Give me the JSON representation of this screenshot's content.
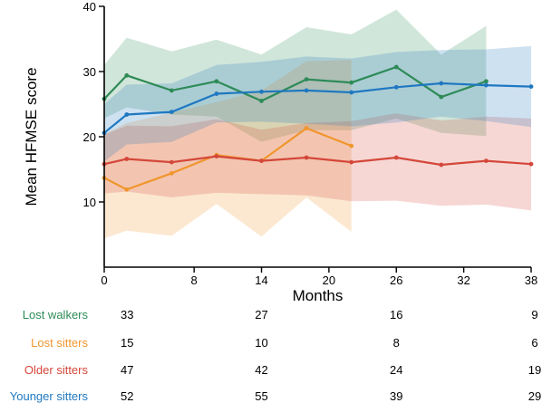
{
  "chart_data": {
    "type": "line",
    "xlabel": "Months",
    "ylabel": "Mean HFMSE score",
    "xlim": [
      0,
      38
    ],
    "ylim": [
      0,
      40
    ],
    "x_ticks": [
      "0",
      "8",
      "14",
      "20",
      "26",
      "32",
      "38"
    ],
    "y_ticks": [
      "10",
      "20",
      "30",
      "40"
    ],
    "grid": false,
    "series": [
      {
        "name": "Lost walkers",
        "color": "#2e8b57",
        "x": [
          0,
          2,
          6,
          10,
          14,
          18,
          22,
          26,
          30,
          34
        ],
        "y": [
          25.8,
          29.4,
          27.1,
          28.5,
          25.5,
          28.8,
          28.3,
          30.7,
          26.1,
          28.5
        ],
        "band_upper": [
          31,
          35.2,
          33.1,
          34.9,
          32.6,
          36.8,
          35.7,
          39.5,
          32.6,
          37
        ],
        "band_lower": [
          22.8,
          24.5,
          23.4,
          23.1,
          19.2,
          21,
          21,
          22.8,
          20.6,
          20.1
        ],
        "at_risk": [
          "33",
          "27",
          "16",
          "9"
        ]
      },
      {
        "name": "Lost sitters",
        "color": "#f0962e",
        "x": [
          0,
          2,
          6,
          10,
          14,
          18,
          22
        ],
        "y": [
          13.7,
          11.9,
          14.4,
          17.2,
          16.3,
          21.3,
          18.6
        ],
        "band_upper": [
          20.4,
          22.1,
          23.7,
          25.3,
          27.1,
          31.6,
          31.8
        ],
        "band_lower": [
          4.4,
          5.6,
          4.8,
          9.7,
          4.7,
          10.7,
          5.4
        ],
        "at_risk": [
          "15",
          "10",
          "8",
          "6"
        ]
      },
      {
        "name": "Older sitters",
        "color": "#d4473a",
        "x": [
          0,
          2,
          6,
          10,
          14,
          18,
          22,
          26,
          30,
          34,
          38
        ],
        "y": [
          15.8,
          16.6,
          16.1,
          17,
          16.3,
          16.8,
          16.1,
          16.8,
          15.7,
          16.3,
          15.8
        ],
        "band_upper": [
          20.3,
          21.7,
          21.6,
          22.7,
          21.1,
          22.1,
          22.4,
          23.6,
          22.5,
          23.1,
          22.8
        ],
        "band_lower": [
          11.3,
          11.6,
          10.7,
          11.4,
          11.2,
          11,
          10.1,
          10.2,
          9.4,
          9.6,
          8.7
        ],
        "at_risk": [
          "47",
          "42",
          "24",
          "19"
        ]
      },
      {
        "name": "Younger sitters",
        "color": "#1f78c1",
        "x": [
          0,
          2,
          6,
          10,
          14,
          18,
          22,
          26,
          30,
          34,
          38
        ],
        "y": [
          20.6,
          23.4,
          23.8,
          26.6,
          26.9,
          27.1,
          26.8,
          27.6,
          28.2,
          27.9,
          27.7
        ],
        "band_upper": [
          25,
          28,
          28.2,
          31,
          31.5,
          32.3,
          32,
          33,
          33.3,
          33.4,
          33.9
        ],
        "band_lower": [
          16.2,
          18.8,
          19.2,
          22.2,
          22.3,
          22,
          21.6,
          22.2,
          23.1,
          22.4,
          21.5
        ],
        "at_risk": [
          "52",
          "55",
          "39",
          "29"
        ]
      }
    ],
    "at_risk_times": [
      0,
      14,
      26,
      38
    ]
  }
}
